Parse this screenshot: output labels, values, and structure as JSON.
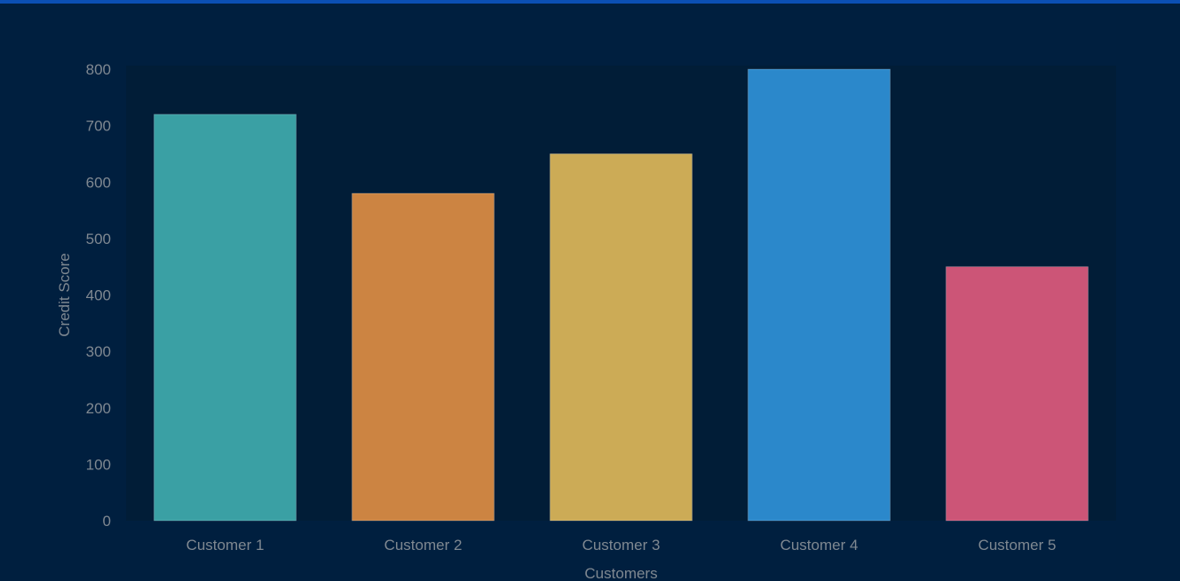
{
  "theme": {
    "background": "#001f3f",
    "top_bar": "#0b4fb3",
    "text_color": "#7f8891",
    "plot_background": "#011d37"
  },
  "chart_data": {
    "type": "bar",
    "title": "",
    "xlabel": "Customers",
    "ylabel": "Credit Score",
    "categories": [
      "Customer 1",
      "Customer 2",
      "Customer 3",
      "Customer 4",
      "Customer 5"
    ],
    "values": [
      720,
      580,
      650,
      800,
      450
    ],
    "colors": [
      "#3aa0a4",
      "#cc8442",
      "#ccab56",
      "#2b88cb",
      "#cc5577"
    ],
    "ylim": [
      0,
      800
    ],
    "yticks": [
      0,
      100,
      200,
      300,
      400,
      500,
      600,
      700,
      800
    ],
    "grid": false,
    "legend": false
  }
}
